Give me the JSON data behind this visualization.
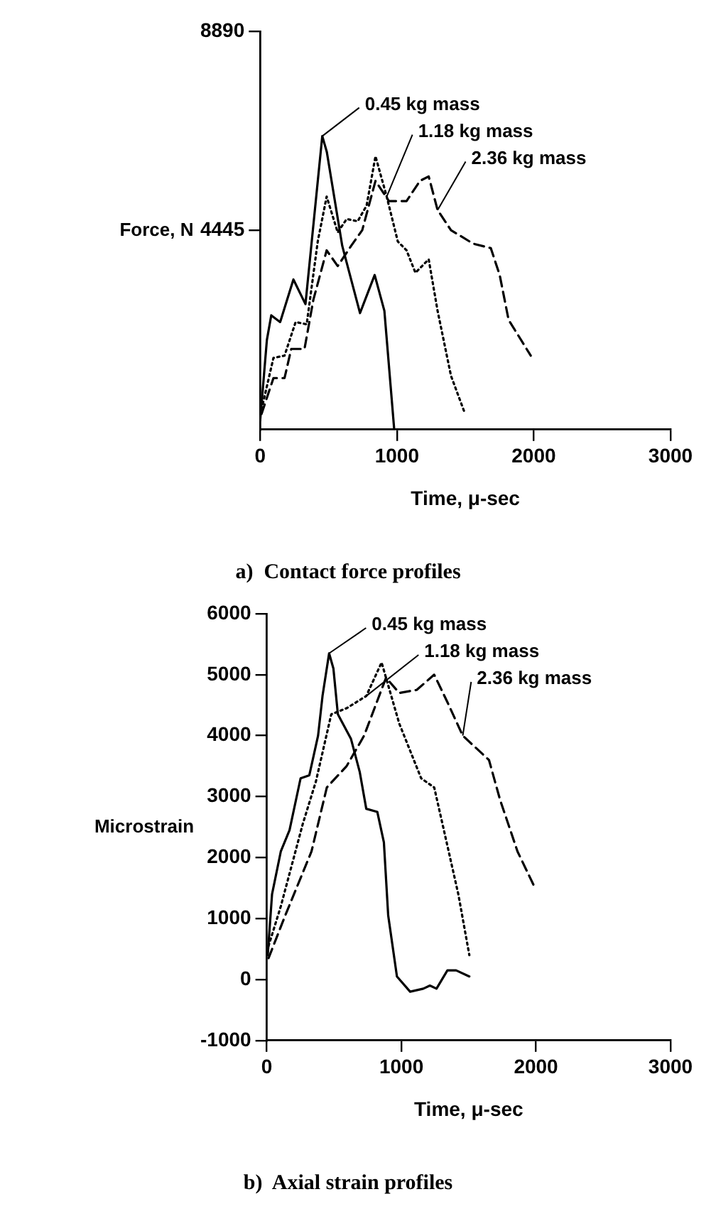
{
  "chart_data": [
    {
      "type": "line",
      "title": "a)  Contact force profiles",
      "xlabel": "Time, μ-sec",
      "ylabel": "Force, N",
      "xlim": [
        0,
        3000
      ],
      "xticks": [
        0,
        1000,
        2000,
        3000
      ],
      "ylim": [
        0,
        8890
      ],
      "yticks": [
        4445,
        8890
      ],
      "grid": false,
      "legend": false,
      "marker": "none",
      "series": [
        {
          "name": "0.45 kg mass",
          "color": "#000000",
          "line_style": "solid",
          "x": [
            0,
            49,
            81,
            146,
            243,
            331,
            454,
            487,
            600,
            730,
            837,
            908,
            980
          ],
          "values": [
            200,
            2000,
            2550,
            2400,
            3350,
            2800,
            6550,
            6200,
            4100,
            2600,
            3450,
            2650,
            0
          ]
        },
        {
          "name": "1.18 kg mass",
          "color": "#000000",
          "line_style": "dotted",
          "x": [
            10,
            97,
            178,
            259,
            340,
            421,
            486,
            567,
            632,
            713,
            778,
            843,
            925,
            1006,
            1070,
            1135,
            1232,
            1297,
            1395,
            1492
          ],
          "values": [
            450,
            1600,
            1650,
            2400,
            2350,
            4200,
            5200,
            4400,
            4700,
            4650,
            5000,
            6100,
            5200,
            4200,
            4000,
            3500,
            3800,
            2650,
            1200,
            400
          ]
        },
        {
          "name": "2.36 kg mass",
          "color": "#000000",
          "line_style": "dashed",
          "x": [
            10,
            97,
            178,
            227,
            324,
            389,
            486,
            567,
            665,
            746,
            843,
            941,
            1070,
            1168,
            1232,
            1297,
            1395,
            1557,
            1686,
            1751,
            1816,
            1978
          ],
          "values": [
            350,
            1150,
            1150,
            1800,
            1800,
            2900,
            4000,
            3650,
            4100,
            4450,
            5550,
            5100,
            5100,
            5550,
            5650,
            4900,
            4450,
            4150,
            4050,
            3450,
            2450,
            1650
          ]
        }
      ]
    },
    {
      "type": "line",
      "title": "b)  Axial strain profiles",
      "xlabel": "Time, μ-sec",
      "ylabel": "Microstrain",
      "xlim": [
        0,
        3000
      ],
      "xticks": [
        0,
        1000,
        2000,
        3000
      ],
      "ylim": [
        -1000,
        6000
      ],
      "yticks": [
        -1000,
        0,
        1000,
        2000,
        3000,
        4000,
        5000,
        6000
      ],
      "grid": false,
      "legend": false,
      "marker": "none",
      "series": [
        {
          "name": "0.45 kg mass",
          "color": "#000000",
          "line_style": "solid",
          "x": [
            7,
            39,
            104,
            169,
            251,
            316,
            381,
            414,
            463,
            495,
            528,
            625,
            691,
            739,
            821,
            870,
            902,
            967,
            1065,
            1163,
            1212,
            1261,
            1342,
            1407,
            1505
          ],
          "values": [
            400,
            1400,
            2100,
            2450,
            3300,
            3350,
            4000,
            4650,
            5350,
            5100,
            4350,
            3950,
            3400,
            2800,
            2750,
            2250,
            1050,
            50,
            -200,
            -150,
            -100,
            -150,
            150,
            150,
            50
          ]
        },
        {
          "name": "1.18 kg mass",
          "color": "#000000",
          "line_style": "dotted",
          "x": [
            13,
            104,
            267,
            365,
            479,
            593,
            739,
            853,
            984,
            1147,
            1244,
            1326,
            1423,
            1505
          ],
          "values": [
            550,
            1200,
            2550,
            3250,
            4350,
            4450,
            4650,
            5200,
            4200,
            3300,
            3150,
            2350,
            1400,
            400
          ]
        },
        {
          "name": "2.36 kg mass",
          "color": "#000000",
          "line_style": "dashed",
          "x": [
            13,
            137,
            332,
            446,
            593,
            723,
            886,
            984,
            1114,
            1244,
            1342,
            1456,
            1651,
            1733,
            1863,
            1993
          ],
          "values": [
            350,
            1050,
            2100,
            3150,
            3500,
            4000,
            4950,
            4700,
            4750,
            5000,
            4550,
            4000,
            3600,
            2950,
            2100,
            1500
          ]
        }
      ]
    }
  ]
}
